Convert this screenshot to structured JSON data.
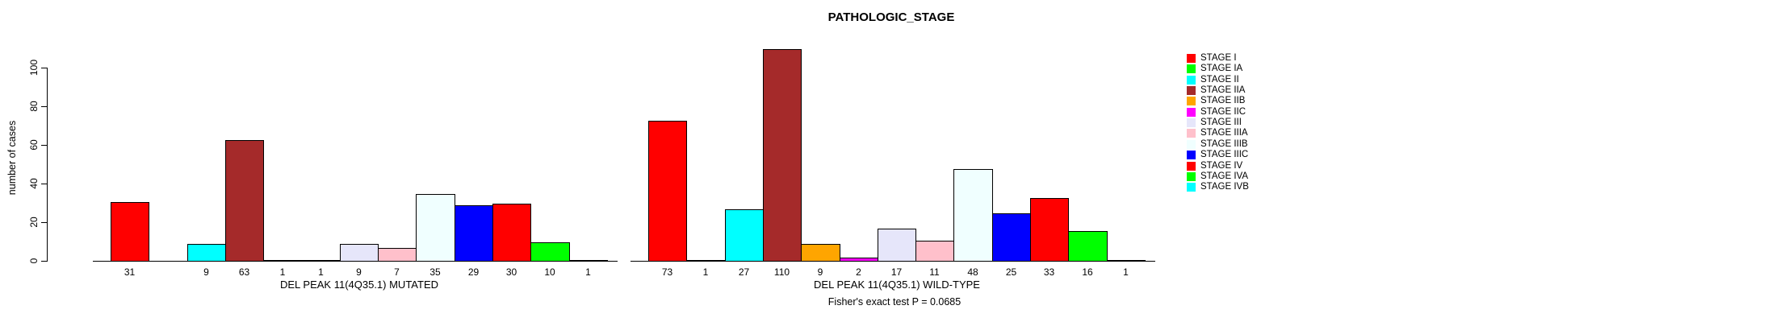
{
  "title": "PATHOLOGIC_STAGE",
  "ylabel": "number of cases",
  "footer": "Fisher's exact test P = 0.0685",
  "axis": {
    "yticks": [
      0,
      20,
      40,
      60,
      80,
      100
    ]
  },
  "legend": {
    "entries": [
      {
        "label": "STAGE I",
        "color": "#FF0000"
      },
      {
        "label": "STAGE IA",
        "color": "#00FF00"
      },
      {
        "label": "STAGE II",
        "color": "#00FFFF"
      },
      {
        "label": "STAGE IIA",
        "color": "#A52A2A"
      },
      {
        "label": "STAGE IIB",
        "color": "#FFA500"
      },
      {
        "label": "STAGE IIC",
        "color": "#FF00FF"
      },
      {
        "label": "STAGE III",
        "color": "#E6E6FA"
      },
      {
        "label": "STAGE IIIA",
        "color": "#FFC0CB"
      },
      {
        "label": "STAGE IIIB",
        "color": "#F0FFFF"
      },
      {
        "label": "STAGE IIIC",
        "color": "#0000FF"
      },
      {
        "label": "STAGE IV",
        "color": "#FF0000"
      },
      {
        "label": "STAGE IVA",
        "color": "#00FF00"
      },
      {
        "label": "STAGE IVB",
        "color": "#00FFFF"
      }
    ]
  },
  "chart_data": {
    "type": "bar",
    "title": "PATHOLOGIC_STAGE",
    "ylabel": "number of cases",
    "ylim": [
      0,
      110
    ],
    "yticks": [
      0,
      20,
      40,
      60,
      80,
      100
    ],
    "grid": false,
    "legend_position": "right",
    "annotation": "Fisher's exact test P = 0.0685",
    "categories": [
      "STAGE I",
      "STAGE IA",
      "STAGE II",
      "STAGE IIA",
      "STAGE IIB",
      "STAGE IIC",
      "STAGE III",
      "STAGE IIIA",
      "STAGE IIIB",
      "STAGE IIIC",
      "STAGE IV",
      "STAGE IVA",
      "STAGE IVB"
    ],
    "palette": [
      "#FF0000",
      "#00FF00",
      "#00FFFF",
      "#A52A2A",
      "#FFA500",
      "#FF00FF",
      "#E6E6FA",
      "#FFC0CB",
      "#F0FFFF",
      "#0000FF",
      "#FF0000",
      "#00FF00",
      "#00FFFF"
    ],
    "series": [
      {
        "name": "DEL PEAK 11(4Q35.1) MUTATED",
        "values": [
          31,
          0,
          9,
          63,
          1,
          1,
          9,
          7,
          35,
          29,
          30,
          10,
          1
        ]
      },
      {
        "name": "DEL PEAK 11(4Q35.1) WILD-TYPE",
        "values": [
          73,
          1,
          27,
          110,
          9,
          2,
          17,
          11,
          48,
          25,
          33,
          16,
          1
        ]
      }
    ],
    "bar_labels_shown_for_zero": false
  }
}
